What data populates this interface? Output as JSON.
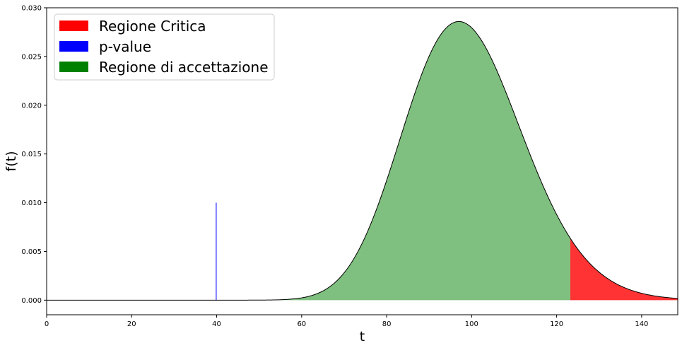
{
  "chart_data": {
    "type": "area",
    "xlabel": "t",
    "ylabel": "f(t)",
    "xlim": [
      0,
      148.5
    ],
    "ylim": [
      -0.0015,
      0.03
    ],
    "x_ticks": [
      0,
      20,
      40,
      60,
      80,
      100,
      120,
      140
    ],
    "y_ticks": [
      0.0,
      0.005,
      0.01,
      0.015,
      0.02,
      0.025,
      0.03
    ],
    "y_tick_labels": [
      "0.000",
      "0.005",
      "0.010",
      "0.015",
      "0.020",
      "0.025",
      "0.030"
    ],
    "grid": false,
    "legend_position": "top-left",
    "density": {
      "description_in_values": "chi-square density, peak ~0.0286 at t~97",
      "dof": 99,
      "x_range": [
        0,
        148.5
      ],
      "peak_x": 97,
      "peak_y": 0.0286,
      "line_color": "#000000"
    },
    "series": [
      {
        "name": "Regione Critica",
        "color": "#ff0000",
        "fill_alpha": 0.8,
        "x_from": 123.2,
        "x_to": 148.5
      },
      {
        "name": "p-value",
        "color": "#0000ff",
        "x_from": 39.9,
        "x_to": 39.9,
        "line_height": 0.01
      },
      {
        "name": "Regione di accettazione",
        "color": "#008000",
        "fill_alpha": 0.5,
        "x_from": 0,
        "x_to": 123.2
      }
    ]
  }
}
